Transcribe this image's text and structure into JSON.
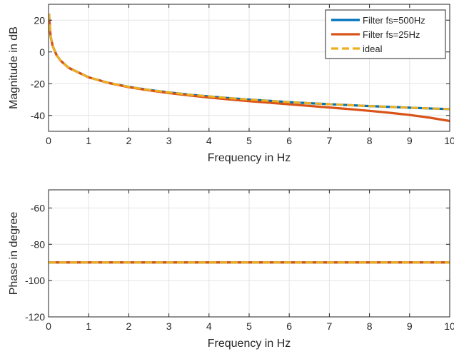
{
  "chart_data": [
    {
      "type": "line",
      "xlabel": "Frequency in Hz",
      "ylabel": "Magnitude in dB",
      "xlim": [
        0,
        10
      ],
      "ylim": [
        -50,
        30
      ],
      "xticks": [
        0,
        1,
        2,
        3,
        4,
        5,
        6,
        7,
        8,
        9,
        10
      ],
      "yticks": [
        -40,
        -20,
        0,
        20
      ],
      "grid": true,
      "legend_position": "top-right",
      "series": [
        {
          "name": "Filter fs=500Hz",
          "color": "#0072BD",
          "style": "solid",
          "x": [
            0.01,
            0.05,
            0.1,
            0.2,
            0.3,
            0.5,
            1,
            1.5,
            2,
            2.5,
            3,
            3.5,
            4,
            4.5,
            5,
            5.5,
            6,
            6.5,
            7,
            7.5,
            8,
            8.5,
            9,
            9.5,
            10
          ],
          "y": [
            24.1,
            10.0,
            4.0,
            -2.0,
            -5.5,
            -10.0,
            -16.0,
            -19.5,
            -22.0,
            -23.9,
            -25.5,
            -26.9,
            -28.0,
            -29.1,
            -30.0,
            -30.8,
            -31.6,
            -32.3,
            -32.9,
            -33.5,
            -34.1,
            -34.6,
            -35.1,
            -35.6,
            -36.0
          ]
        },
        {
          "name": "Filter fs=25Hz",
          "color": "#D95319",
          "style": "solid",
          "x": [
            0.01,
            0.05,
            0.1,
            0.2,
            0.3,
            0.5,
            1,
            1.5,
            2,
            2.5,
            3,
            3.5,
            4,
            4.5,
            5,
            5.5,
            6,
            6.5,
            7,
            7.5,
            8,
            8.5,
            9,
            9.5,
            10
          ],
          "y": [
            24.1,
            10.0,
            4.0,
            -2.0,
            -5.5,
            -10.0,
            -16.0,
            -19.6,
            -22.2,
            -24.2,
            -25.9,
            -27.4,
            -28.7,
            -29.9,
            -31.0,
            -32.0,
            -33.0,
            -34.0,
            -35.0,
            -36.0,
            -37.1,
            -38.3,
            -39.7,
            -41.4,
            -43.5
          ]
        },
        {
          "name": "ideal",
          "color": "#EDB120",
          "style": "dashed",
          "x": [
            0.01,
            0.05,
            0.1,
            0.2,
            0.3,
            0.5,
            1,
            1.5,
            2,
            2.5,
            3,
            3.5,
            4,
            4.5,
            5,
            5.5,
            6,
            6.5,
            7,
            7.5,
            8,
            8.5,
            9,
            9.5,
            10
          ],
          "y": [
            24.1,
            10.0,
            4.0,
            -2.0,
            -5.5,
            -10.0,
            -16.0,
            -19.5,
            -22.0,
            -23.9,
            -25.5,
            -26.9,
            -28.0,
            -29.1,
            -30.0,
            -30.8,
            -31.6,
            -32.3,
            -32.9,
            -33.5,
            -34.1,
            -34.6,
            -35.1,
            -35.6,
            -36.0
          ]
        }
      ]
    },
    {
      "type": "line",
      "xlabel": "Frequency in Hz",
      "ylabel": "Phase in degree",
      "xlim": [
        0,
        10
      ],
      "ylim": [
        -120,
        -50
      ],
      "xticks": [
        0,
        1,
        2,
        3,
        4,
        5,
        6,
        7,
        8,
        9,
        10
      ],
      "yticks": [
        -120,
        -100,
        -80,
        -60
      ],
      "grid": true,
      "series": [
        {
          "color": "#0072BD",
          "style": "solid",
          "x": [
            0,
            10
          ],
          "y": [
            -90,
            -90
          ]
        },
        {
          "color": "#D95319",
          "style": "solid",
          "x": [
            0,
            10
          ],
          "y": [
            -90,
            -90
          ]
        },
        {
          "color": "#EDB120",
          "style": "dashed",
          "x": [
            0,
            10
          ],
          "y": [
            -90,
            -90
          ]
        }
      ]
    }
  ]
}
